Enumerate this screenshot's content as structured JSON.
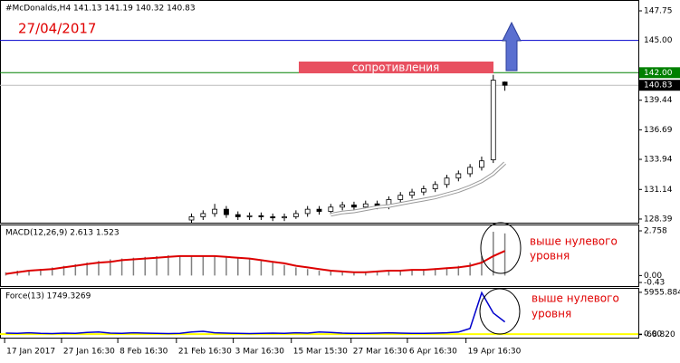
{
  "chart_data": [
    {
      "type": "candlestick",
      "title": "#McDonalds,H4  141.13 141.19 140.32 140.83",
      "annotations": [
        "27/04/2017",
        "сопротивления"
      ],
      "x": [
        33,
        35,
        37,
        39,
        41,
        43,
        45,
        47,
        49,
        51,
        53,
        55,
        57,
        59,
        61,
        63,
        65,
        67,
        69,
        71,
        73,
        75,
        77,
        79,
        81,
        83,
        85,
        87
      ],
      "open": [
        128.3,
        128.6,
        128.9,
        129.3,
        128.8,
        128.6,
        128.7,
        128.6,
        128.5,
        128.6,
        128.9,
        129.3,
        129.1,
        129.5,
        129.7,
        129.5,
        129.8,
        129.6,
        130.2,
        130.6,
        130.9,
        131.2,
        131.6,
        132.2,
        132.6,
        133.2,
        133.9,
        141.13
      ],
      "high": [
        128.9,
        129.2,
        129.8,
        129.6,
        129.1,
        129.0,
        129.0,
        128.9,
        128.9,
        129.2,
        129.6,
        129.6,
        129.8,
        130.0,
        130.0,
        130.1,
        130.1,
        130.5,
        130.9,
        131.2,
        131.5,
        131.9,
        132.5,
        132.9,
        133.5,
        134.2,
        141.8,
        141.19
      ],
      "low": [
        128.0,
        128.3,
        128.6,
        128.5,
        128.3,
        128.3,
        128.3,
        128.2,
        128.2,
        128.4,
        128.6,
        128.8,
        128.8,
        129.2,
        129.2,
        129.2,
        129.3,
        129.3,
        129.9,
        130.3,
        130.6,
        130.9,
        131.3,
        131.9,
        132.3,
        132.9,
        133.6,
        140.32
      ],
      "close": [
        128.6,
        128.9,
        129.3,
        128.8,
        128.6,
        128.7,
        128.6,
        128.5,
        128.6,
        128.9,
        129.3,
        129.1,
        129.5,
        129.7,
        129.5,
        129.8,
        129.6,
        130.2,
        130.6,
        130.9,
        131.2,
        131.6,
        132.2,
        132.6,
        133.2,
        133.8,
        141.3,
        140.83
      ],
      "ma": {
        "color": "#ffffff",
        "values": [
          null,
          null,
          null,
          null,
          null,
          null,
          null,
          null,
          null,
          null,
          null,
          null,
          128.8,
          129.0,
          129.1,
          129.3,
          129.5,
          129.6,
          129.8,
          130.0,
          130.2,
          130.4,
          130.7,
          131.0,
          131.4,
          131.9,
          132.6,
          133.6
        ]
      },
      "xlim": [
        0,
        110
      ],
      "ylim": [
        128.05,
        148.76
      ],
      "yticks": [
        147.75,
        139.44,
        136.69,
        133.94,
        131.14,
        128.39
      ],
      "hlines": [
        {
          "value": 145,
          "label": "145.00",
          "color": "#0000cc"
        },
        {
          "value": 142,
          "label": "142.00",
          "color": "#008000"
        },
        {
          "value": 140.83,
          "label": "140.83",
          "color": "#000000"
        }
      ]
    },
    {
      "type": "macd",
      "title": "MACD(12,26,9) 2.613 1.523",
      "annotation": [
        "выше нулевого",
        "уровня"
      ],
      "x": [
        1,
        3,
        5,
        7,
        9,
        11,
        13,
        15,
        17,
        19,
        21,
        23,
        25,
        27,
        29,
        31,
        33,
        35,
        37,
        39,
        41,
        43,
        45,
        47,
        49,
        51,
        53,
        55,
        57,
        59,
        61,
        63,
        65,
        67,
        69,
        71,
        73,
        75,
        77,
        79,
        81,
        83,
        85,
        87
      ],
      "series": [
        {
          "name": "MACD",
          "color": "#808080",
          "values": [
            0.2,
            0.3,
            0.35,
            0.4,
            0.5,
            0.6,
            0.7,
            0.8,
            0.9,
            1.0,
            1.05,
            1.1,
            1.15,
            1.2,
            1.25,
            1.25,
            1.25,
            1.2,
            1.2,
            1.15,
            1.1,
            1.0,
            0.9,
            0.8,
            0.65,
            0.5,
            0.4,
            0.3,
            0.25,
            0.2,
            0.2,
            0.25,
            0.3,
            0.3,
            0.35,
            0.35,
            0.4,
            0.45,
            0.5,
            0.6,
            0.8,
            1.2,
            2.7,
            2.6
          ]
        },
        {
          "name": "Signal",
          "color": "#dd0000",
          "values": [
            0.1,
            0.2,
            0.3,
            0.35,
            0.4,
            0.5,
            0.6,
            0.7,
            0.8,
            0.85,
            0.95,
            1.0,
            1.05,
            1.1,
            1.15,
            1.2,
            1.2,
            1.2,
            1.2,
            1.15,
            1.1,
            1.05,
            0.95,
            0.85,
            0.75,
            0.6,
            0.5,
            0.4,
            0.3,
            0.25,
            0.2,
            0.2,
            0.25,
            0.3,
            0.3,
            0.35,
            0.35,
            0.4,
            0.45,
            0.5,
            0.6,
            0.8,
            1.2,
            1.52
          ]
        }
      ],
      "xlim": [
        0,
        110
      ],
      "ylim": [
        -0.65,
        3.15
      ],
      "yticks": [
        2.758,
        {
          "value": 0,
          "label": "0.00"
        },
        -0.43
      ]
    },
    {
      "type": "force",
      "title": "Force(13) 1749.3269",
      "annotation": [
        "выше нулевого",
        "уровня"
      ],
      "x": [
        1,
        3,
        5,
        7,
        9,
        11,
        13,
        15,
        17,
        19,
        21,
        23,
        25,
        27,
        29,
        31,
        33,
        35,
        37,
        39,
        41,
        43,
        45,
        47,
        49,
        51,
        53,
        55,
        57,
        59,
        61,
        63,
        65,
        67,
        69,
        71,
        73,
        75,
        77,
        79,
        81,
        83,
        85,
        87
      ],
      "values": [
        150,
        100,
        200,
        120,
        80,
        150,
        100,
        250,
        300,
        150,
        100,
        200,
        150,
        100,
        80,
        120,
        300,
        400,
        200,
        150,
        100,
        80,
        120,
        150,
        100,
        200,
        150,
        300,
        250,
        150,
        100,
        120,
        150,
        200,
        150,
        100,
        120,
        150,
        200,
        300,
        800,
        5900,
        3000,
        1749
      ],
      "color": "#0000cc",
      "zero_color": "#ffff00",
      "xlim": [
        0,
        110
      ],
      "ylim": [
        -500,
        6590
      ],
      "yticks": [
        5955.884,
        {
          "value": 0,
          "label": "0.00"
        },
        {
          "value": -68.82,
          "label": "-68.820"
        }
      ],
      "xticks": [
        {
          "value": 0.8,
          "label": "17 Jan 2017"
        },
        {
          "value": 10.6,
          "label": "27 Jan 16:30"
        },
        {
          "value": 20.3,
          "label": "8 Feb 16:30"
        },
        {
          "value": 30.4,
          "label": "21 Feb 16:30"
        },
        {
          "value": 40.2,
          "label": "3 Mar 16:30"
        },
        {
          "value": 50.2,
          "label": "15 Mar 15:30"
        },
        {
          "value": 60.5,
          "label": "27 Mar 16:30"
        },
        {
          "value": 70.2,
          "label": "6 Apr 16:30"
        },
        {
          "value": 80.3,
          "label": "19 Apr 16:30"
        }
      ]
    }
  ]
}
